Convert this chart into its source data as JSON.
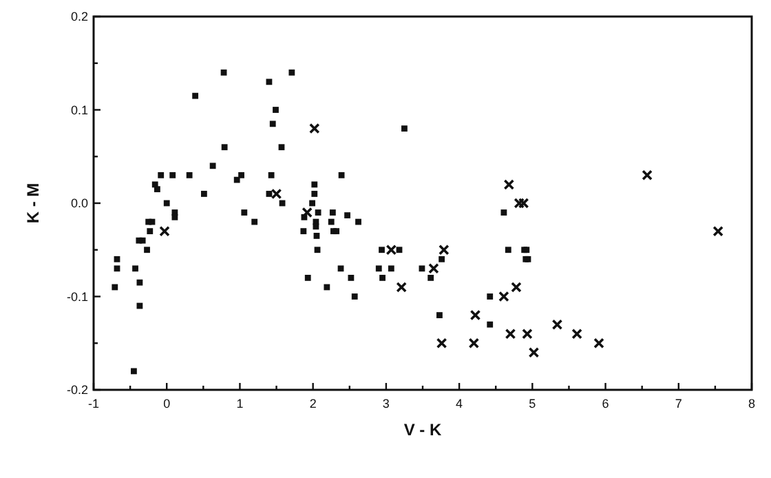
{
  "chart_data": {
    "type": "scatter",
    "xlabel": "V - K",
    "ylabel": "K - M",
    "xlim": [
      -1,
      8
    ],
    "ylim": [
      -0.2,
      0.2
    ],
    "xticks": [
      -1,
      {
        "value": -0.5,
        "label": null
      },
      0,
      {
        "value": 0.5,
        "label": null
      },
      1,
      {
        "value": 1.5,
        "label": null
      },
      2,
      {
        "value": 2.5,
        "label": null
      },
      3,
      {
        "value": 3.5,
        "label": null
      },
      4,
      {
        "value": 4.5,
        "label": null
      },
      5,
      {
        "value": 5.5,
        "label": null
      },
      6,
      {
        "value": 6.5,
        "label": null
      },
      7,
      {
        "value": 7.5,
        "label": null
      },
      8
    ],
    "yticks": [
      -0.2,
      {
        "value": -0.15,
        "label": null
      },
      -0.1,
      {
        "value": -0.05,
        "label": null
      },
      {
        "value": 0,
        "label": "0.0"
      },
      {
        "value": 0.05,
        "label": null
      },
      0.1,
      {
        "value": 0.15,
        "label": null
      },
      0.2
    ],
    "grid": false,
    "series": [
      {
        "color": "#111111",
        "marker": "square",
        "x": [
          -0.71,
          -0.68,
          -0.68,
          -0.45,
          -0.43,
          -0.37,
          -0.37,
          -0.38,
          -0.33,
          -0.27,
          -0.23,
          -0.25,
          -0.2,
          -0.16,
          -0.13,
          -0.08,
          0.0,
          0.08,
          0.11,
          0.11,
          0.31,
          0.39,
          0.51,
          0.63,
          0.78,
          0.79,
          0.96,
          1.02,
          1.06,
          1.2,
          1.4,
          1.49,
          1.45,
          1.57,
          1.43,
          1.4,
          1.58,
          1.71,
          1.87,
          1.88,
          1.93,
          2.02,
          1.99,
          2.02,
          2.07,
          2.04,
          2.04,
          2.05,
          2.06,
          2.39,
          2.27,
          2.25,
          2.28,
          2.32,
          2.47,
          2.62,
          2.38,
          2.19,
          2.52,
          2.57,
          3.25,
          2.94,
          3.18,
          2.9,
          3.07,
          2.95,
          3.49,
          3.61,
          3.76,
          3.73,
          4.42,
          4.42,
          4.61,
          4.67,
          4.89,
          4.92,
          4.91,
          4.94
        ],
        "values": [
          -0.09,
          -0.06,
          -0.07,
          -0.18,
          -0.07,
          -0.085,
          -0.11,
          -0.04,
          -0.04,
          -0.05,
          -0.03,
          -0.02,
          -0.02,
          0.02,
          0.015,
          0.03,
          0.0,
          0.03,
          -0.01,
          -0.015,
          0.03,
          0.115,
          0.01,
          0.04,
          0.14,
          0.06,
          0.025,
          0.03,
          -0.01,
          -0.02,
          0.13,
          0.1,
          0.085,
          0.06,
          0.03,
          0.01,
          0.0,
          0.14,
          -0.03,
          -0.015,
          -0.08,
          0.02,
          0.0,
          0.01,
          -0.01,
          -0.02,
          -0.025,
          -0.035,
          -0.05,
          0.03,
          -0.01,
          -0.02,
          -0.03,
          -0.03,
          -0.013,
          -0.02,
          -0.07,
          -0.09,
          -0.08,
          -0.1,
          0.08,
          -0.05,
          -0.05,
          -0.07,
          -0.07,
          -0.08,
          -0.07,
          -0.08,
          -0.06,
          -0.12,
          -0.1,
          -0.13,
          -0.01,
          -0.05,
          -0.05,
          -0.05,
          -0.06,
          -0.06
        ]
      },
      {
        "color": "#111111",
        "marker": "cross",
        "x": [
          -0.03,
          1.5,
          1.92,
          2.02,
          3.07,
          3.21,
          3.65,
          3.79,
          3.76,
          4.22,
          4.2,
          4.68,
          4.82,
          4.88,
          4.78,
          4.61,
          4.7,
          4.93,
          5.02,
          5.34,
          5.61,
          5.91,
          6.57,
          7.54
        ],
        "values": [
          -0.03,
          0.01,
          -0.01,
          0.08,
          -0.05,
          -0.09,
          -0.07,
          -0.05,
          -0.15,
          -0.12,
          -0.15,
          0.02,
          0.0,
          0.0,
          -0.09,
          -0.1,
          -0.14,
          -0.14,
          -0.16,
          -0.13,
          -0.14,
          -0.15,
          0.03,
          -0.03
        ]
      }
    ]
  }
}
